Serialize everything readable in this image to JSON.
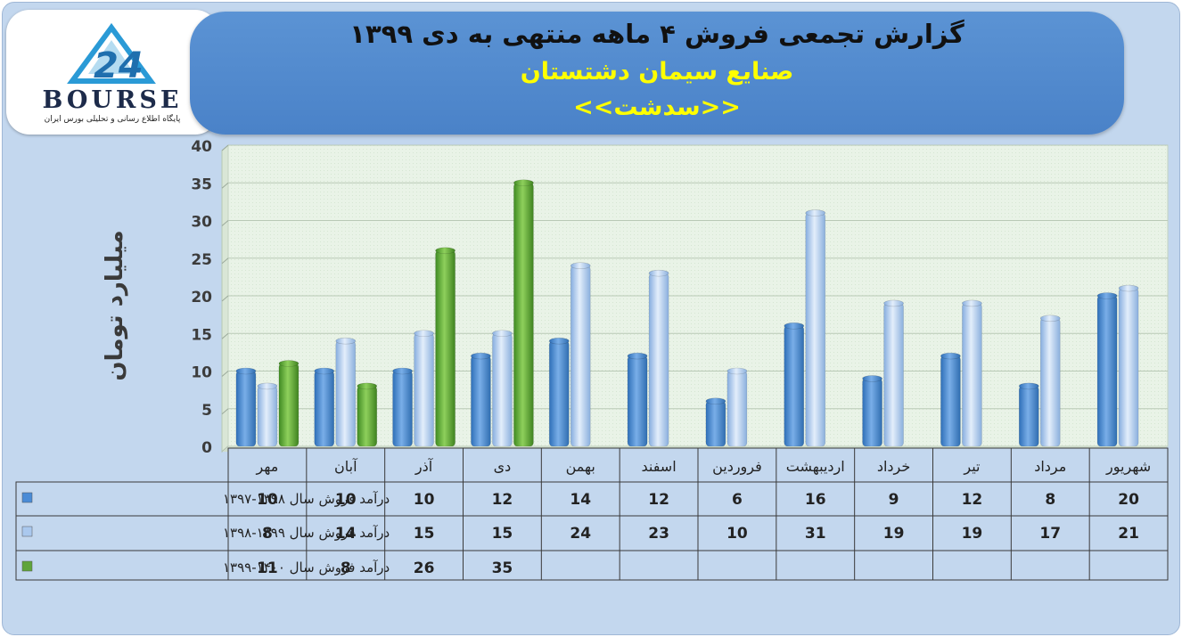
{
  "header": {
    "title": "گزارش تجمعی فروش ۴ ماهه منتهی به دی ۱۳۹۹",
    "company": "صنایع سیمان دشتستان",
    "ticker": "<<سدشت>>"
  },
  "logo": {
    "text": "BOURSE",
    "subtitle": "پایگاه اطلاع رسانی و تحلیلی بورس ایران"
  },
  "colors": {
    "series1": "#4a8bd6",
    "series2": "#aac8ee",
    "series3": "#5fa43a"
  },
  "chart_data": {
    "type": "bar",
    "ylabel": "میلیارد تومان",
    "ylim": [
      0,
      40
    ],
    "yticks": [
      0,
      5,
      10,
      15,
      20,
      25,
      30,
      35,
      40
    ],
    "grid": true,
    "legend": "table-left",
    "categories": [
      "مهر",
      "آبان",
      "آذر",
      "دی",
      "بهمن",
      "اسفند",
      "فروردین",
      "اردیبهشت",
      "خرداد",
      "تیر",
      "مرداد",
      "شهریور"
    ],
    "series": [
      {
        "name": "درآمد فروش سال ۱۳۹۸-۱۳۹۷",
        "values": [
          10,
          10,
          10,
          12,
          14,
          12,
          6,
          16,
          9,
          12,
          8,
          20
        ]
      },
      {
        "name": "درآمد فروش سال ۱۳۹۹-۱۳۹۸",
        "values": [
          8,
          14,
          15,
          15,
          24,
          23,
          10,
          31,
          19,
          19,
          17,
          21
        ]
      },
      {
        "name": "درآمد فروش سال ۱۴۰۰-۱۳۹۹",
        "values": [
          11,
          8,
          26,
          35,
          null,
          null,
          null,
          null,
          null,
          null,
          null,
          null
        ]
      }
    ]
  }
}
